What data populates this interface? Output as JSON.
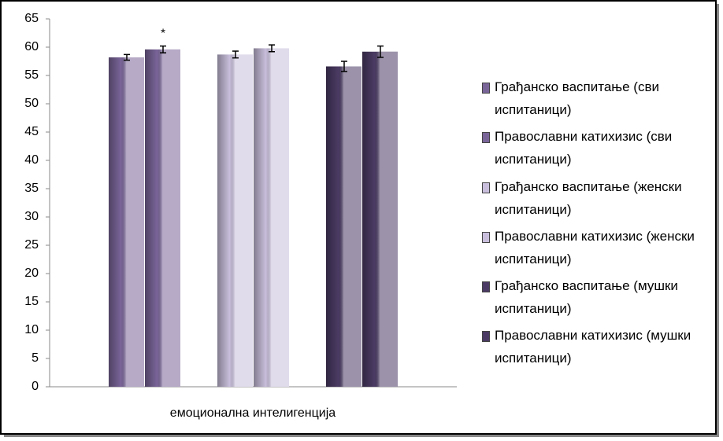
{
  "chart_data": {
    "type": "bar",
    "categories": [
      "емоционална интелигенција"
    ],
    "annotation": "*",
    "series": [
      {
        "name": "Грађанско васпитање (сви испитаници)",
        "color": "#7a6599",
        "values": [
          58.2
        ],
        "errors": [
          0.5
        ]
      },
      {
        "name": "Православни катихизис (сви испитаници)",
        "color": "#7a6599",
        "values": [
          59.6
        ],
        "errors": [
          0.6
        ]
      },
      {
        "name": "Грађанско васпитање (женски испитаници)",
        "color": "#c9bfdc",
        "values": [
          58.7
        ],
        "errors": [
          0.6
        ]
      },
      {
        "name": "Православни катихизис (женски испитаници)",
        "color": "#c9bfdc",
        "values": [
          59.8
        ],
        "errors": [
          0.6
        ]
      },
      {
        "name": "Грађанско васпитање (мушки испитаници)",
        "color": "#4b3b64",
        "values": [
          56.6
        ],
        "errors": [
          0.9
        ]
      },
      {
        "name": "Православни катихизис (мушки испитаници)",
        "color": "#4b3b64",
        "values": [
          59.2
        ],
        "errors": [
          1.0
        ]
      }
    ],
    "ylim": [
      0,
      65
    ],
    "yticks": [
      0,
      5,
      10,
      15,
      20,
      25,
      30,
      35,
      40,
      45,
      50,
      55,
      60,
      65
    ],
    "legend": "right"
  }
}
